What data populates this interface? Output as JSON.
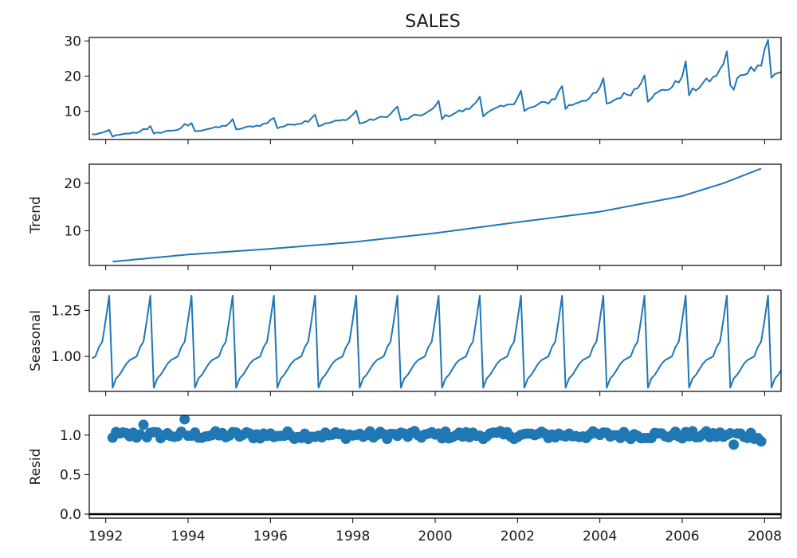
{
  "colors": {
    "series": "#1f77b4",
    "axis": "#000000"
  },
  "chart_data": {
    "type": "line",
    "title": "SALES",
    "x": {
      "range": [
        1991.6,
        2008.4
      ],
      "ticks": [
        1992,
        1994,
        1996,
        1998,
        2000,
        2002,
        2004,
        2006,
        2008
      ],
      "tick_labels": [
        "1992",
        "1994",
        "1996",
        "1998",
        "2000",
        "2002",
        "2004",
        "2006",
        "2008"
      ]
    },
    "panels": [
      {
        "id": "observed",
        "ylabel": "",
        "type": "line",
        "ylim": [
          2,
          31
        ],
        "yticks": [
          10,
          20,
          30
        ],
        "ytick_labels": [
          "10",
          "20",
          "30"
        ],
        "generator": {
          "start": 1991.667,
          "end": 2008.417,
          "model": "trend*seasonal"
        }
      },
      {
        "id": "trend",
        "ylabel": "Trend",
        "type": "line",
        "ylim": [
          2.7,
          24.0
        ],
        "yticks": [
          10,
          20
        ],
        "ytick_labels": [
          "10",
          "20"
        ],
        "generator": {
          "start": 1992.167,
          "end": 2007.917,
          "model": "trend"
        }
      },
      {
        "id": "seasonal",
        "ylabel": "Seasonal",
        "type": "line",
        "ylim": [
          0.81,
          1.36
        ],
        "yticks": [
          1.0,
          1.25
        ],
        "ytick_labels": [
          "1.00",
          "1.25"
        ],
        "generator": {
          "start": 1991.667,
          "end": 2008.417,
          "model": "seasonal"
        }
      },
      {
        "id": "resid",
        "ylabel": "Resid",
        "type": "scatter",
        "ylim": [
          -0.05,
          1.25
        ],
        "yticks": [
          0.0,
          0.5,
          1.0
        ],
        "ytick_labels": [
          "0.0",
          "0.5",
          "1.0"
        ],
        "baseline": 0.0,
        "generator": {
          "start": 1992.167,
          "end": 2007.917,
          "model": "resid"
        }
      }
    ],
    "trend_knots": [
      [
        1992.17,
        3.5
      ],
      [
        1994.0,
        5.0
      ],
      [
        1996.0,
        6.2
      ],
      [
        1998.0,
        7.6
      ],
      [
        2000.0,
        9.5
      ],
      [
        2002.0,
        11.8
      ],
      [
        2004.0,
        14.0
      ],
      [
        2006.0,
        17.3
      ],
      [
        2007.0,
        20.0
      ],
      [
        2007.92,
        23.1
      ]
    ],
    "seasonal_profile": [
      0.99,
      1.0,
      1.05,
      1.08,
      1.2,
      1.33,
      0.83,
      0.88,
      0.9,
      0.93,
      0.96,
      0.98
    ]
  }
}
